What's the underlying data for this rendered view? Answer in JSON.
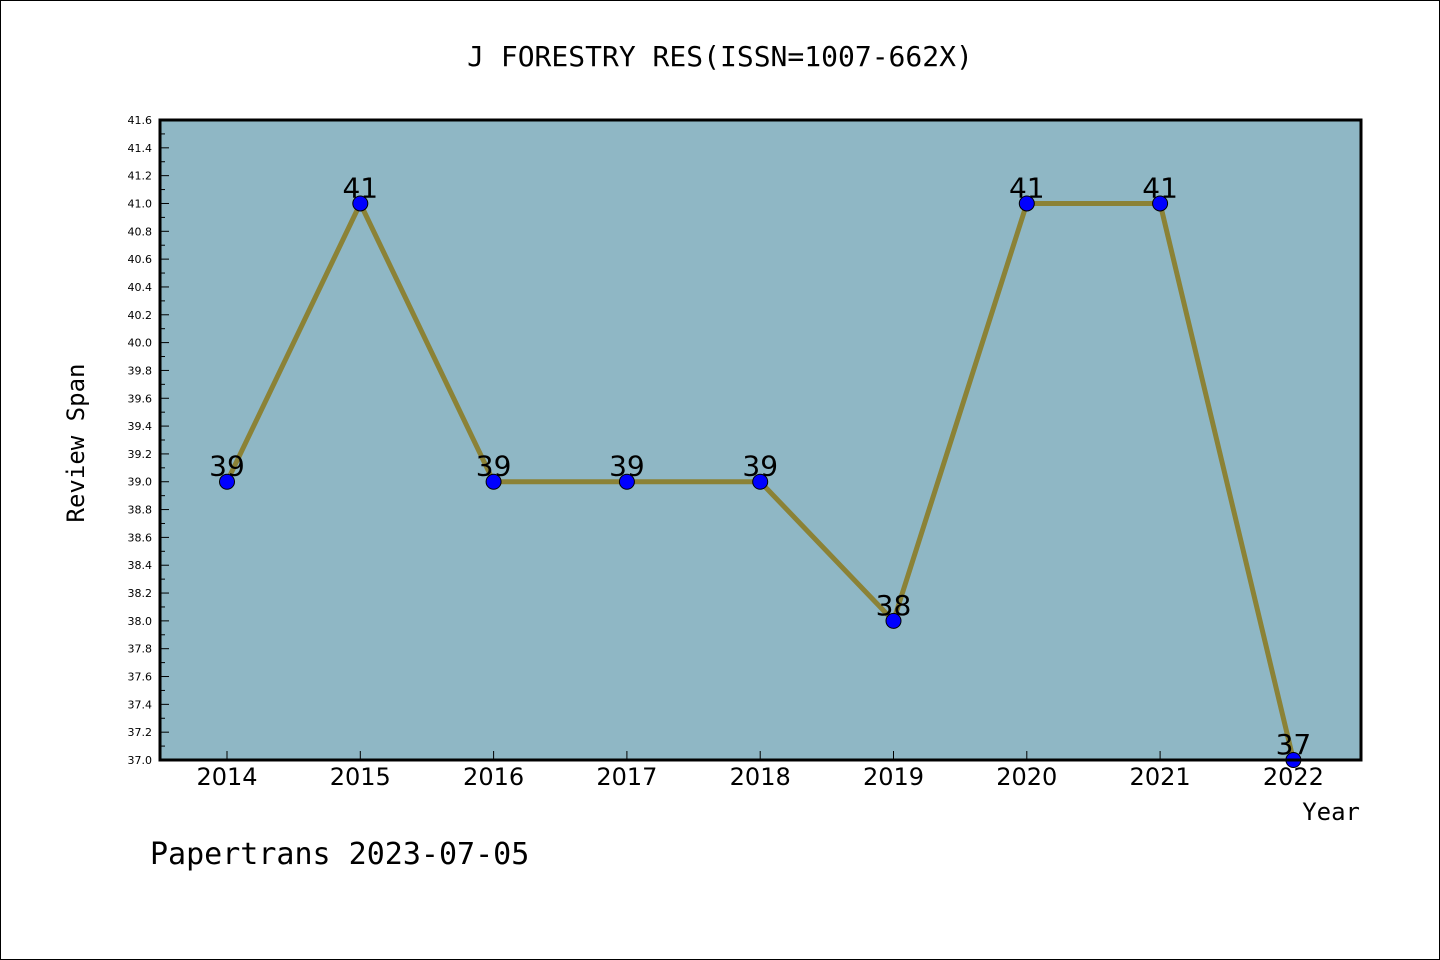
{
  "chart_data": {
    "type": "line",
    "title": "J FORESTRY RES(ISSN=1007-662X)",
    "xlabel": "Year",
    "ylabel": "Review Span",
    "categories": [
      "2014",
      "2015",
      "2016",
      "2017",
      "2018",
      "2019",
      "2020",
      "2021",
      "2022"
    ],
    "series": [
      {
        "values": [
          39,
          41,
          39,
          39,
          39,
          38,
          41,
          41,
          37
        ]
      }
    ],
    "data_labels": [
      "39",
      "41",
      "39",
      "39",
      "39",
      "38",
      "41",
      "41",
      "37"
    ],
    "ylim": [
      37.0,
      41.6
    ],
    "yticks": [
      "37.0",
      "37.2",
      "37.4",
      "37.6",
      "37.8",
      "38.0",
      "38.2",
      "38.4",
      "38.6",
      "38.8",
      "39.0",
      "39.2",
      "39.4",
      "39.6",
      "39.8",
      "40.0",
      "40.2",
      "40.4",
      "40.6",
      "40.8",
      "41.0",
      "41.2",
      "41.4",
      "41.6"
    ],
    "grid": false,
    "colors": {
      "plot_background": "#8fb7c5",
      "line": "#8b8236",
      "marker": "#0000ff"
    }
  },
  "footer": {
    "credit": "Papertrans 2023-07-05"
  }
}
